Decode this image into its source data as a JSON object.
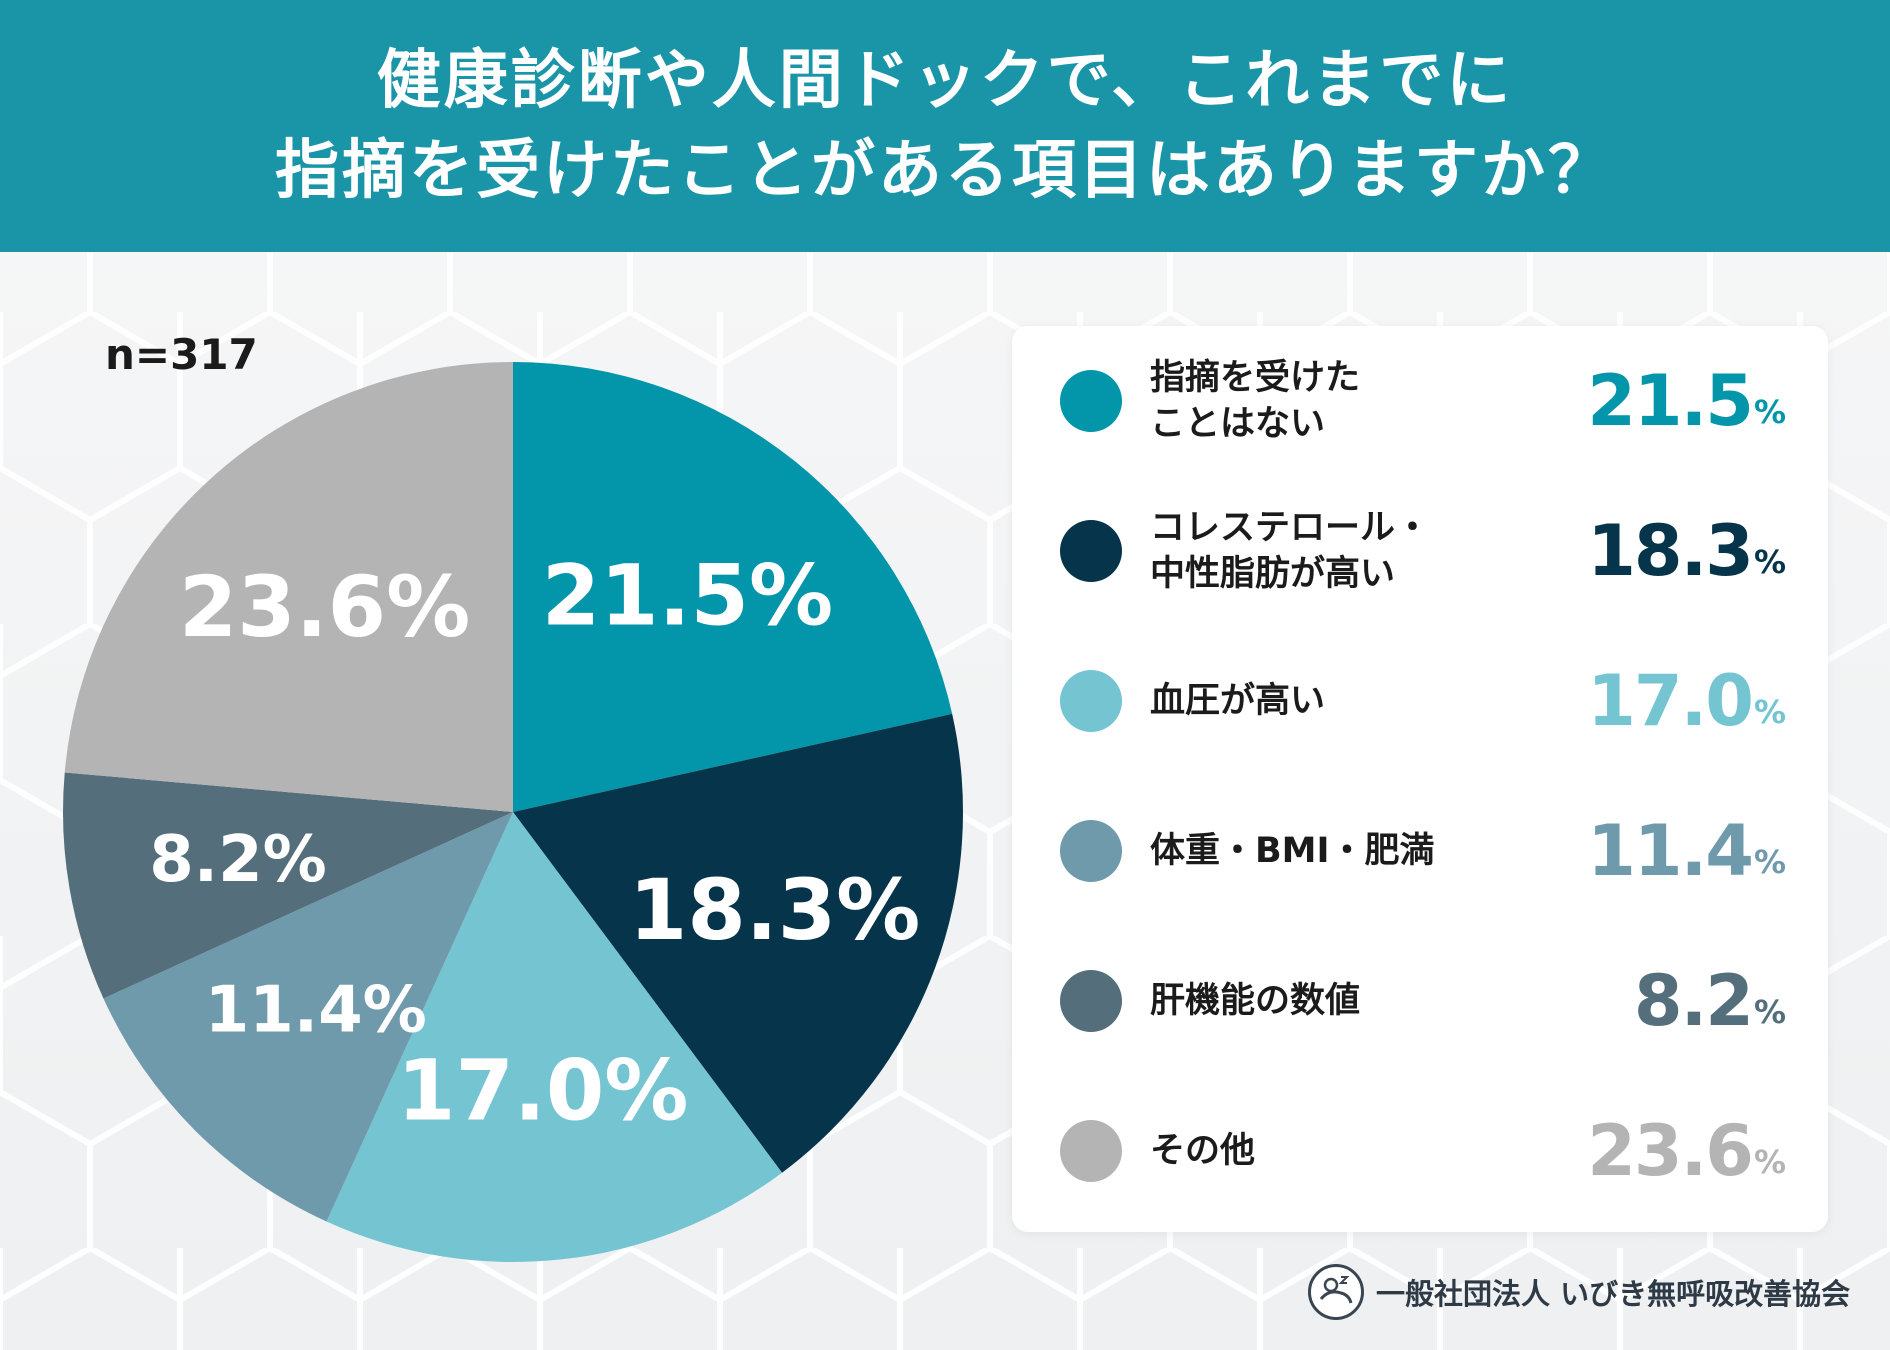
{
  "header": {
    "title_line1": "健康診断や人間ドックで、これまでに",
    "title_line2": "指摘を受けたことがある項目はありますか？"
  },
  "sample_label": "n=317",
  "chart_data": {
    "type": "pie",
    "title": "健康診断や人間ドックで、これまでに指摘を受けたことがある項目はありますか？",
    "n_label": "n=317",
    "unit": "%",
    "legend_position": "right",
    "slices": [
      {
        "label": "指摘を受けたことはない",
        "label_display": "指摘を受けた\nことはない",
        "value": 21.5,
        "value_text": "21.5",
        "color": "#0396aa"
      },
      {
        "label": "コレステロール・中性脂肪が高い",
        "label_display": "コレステロール・\n中性脂肪が高い",
        "value": 18.3,
        "value_text": "18.3",
        "color": "#06344a"
      },
      {
        "label": "血圧が高い",
        "label_display": "血圧が高い",
        "value": 17.0,
        "value_text": "17.0",
        "color": "#74c4d2"
      },
      {
        "label": "体重・BMI・肥満",
        "label_display": "体重・BMI・肥満",
        "value": 11.4,
        "value_text": "11.4",
        "color": "#6f9aac"
      },
      {
        "label": "肝機能の数値",
        "label_display": "肝機能の数値",
        "value": 8.2,
        "value_text": "8.2",
        "color": "#556e7c"
      },
      {
        "label": "その他",
        "label_display": "その他",
        "value": 23.6,
        "value_text": "23.6",
        "color": "#b4b4b4"
      }
    ]
  },
  "footer": {
    "organization": "一般社団法人 いびき無呼吸改善協会",
    "logo_icon": "sleeping-face-icon"
  }
}
